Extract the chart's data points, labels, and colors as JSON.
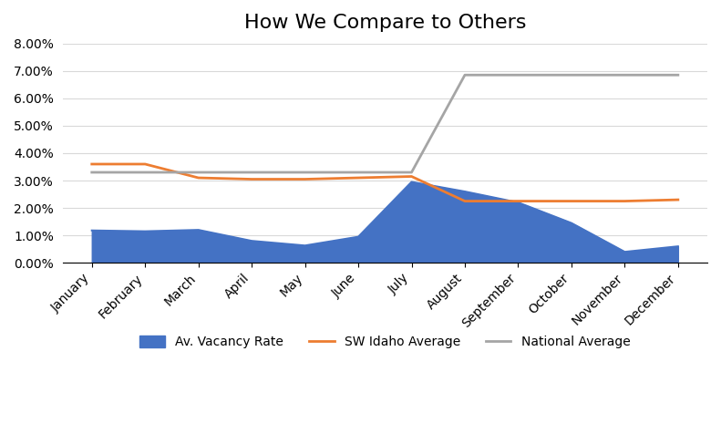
{
  "title": "How We Compare to Others",
  "months": [
    "January",
    "February",
    "March",
    "April",
    "May",
    "June",
    "July",
    "August",
    "September",
    "October",
    "November",
    "December"
  ],
  "vacancy_rate": [
    0.0118,
    0.0115,
    0.012,
    0.008,
    0.0063,
    0.0095,
    0.0295,
    0.026,
    0.022,
    0.0145,
    0.004,
    0.006
  ],
  "sw_idaho_avg": [
    0.036,
    0.036,
    0.031,
    0.0305,
    0.0305,
    0.031,
    0.0315,
    0.0225,
    0.0225,
    0.0225,
    0.0225,
    0.023
  ],
  "national_avg": [
    0.033,
    0.033,
    0.033,
    0.033,
    0.033,
    0.033,
    0.033,
    0.0685,
    0.0685,
    0.0685,
    0.0685,
    0.0685
  ],
  "vacancy_color": "#4472C4",
  "sw_idaho_color": "#ED7D31",
  "national_color": "#A5A5A5",
  "background_color": "#FFFFFF",
  "plot_bg_color": "#FFFFFF",
  "grid_color": "#D9D9D9",
  "ylim": [
    0.0,
    0.08
  ],
  "yticks": [
    0.0,
    0.01,
    0.02,
    0.03,
    0.04,
    0.05,
    0.06,
    0.07,
    0.08
  ],
  "legend_labels": [
    "Av. Vacancy Rate",
    "SW Idaho Average",
    "National Average"
  ],
  "title_fontsize": 16,
  "label_fontsize": 10,
  "legend_fontsize": 10
}
